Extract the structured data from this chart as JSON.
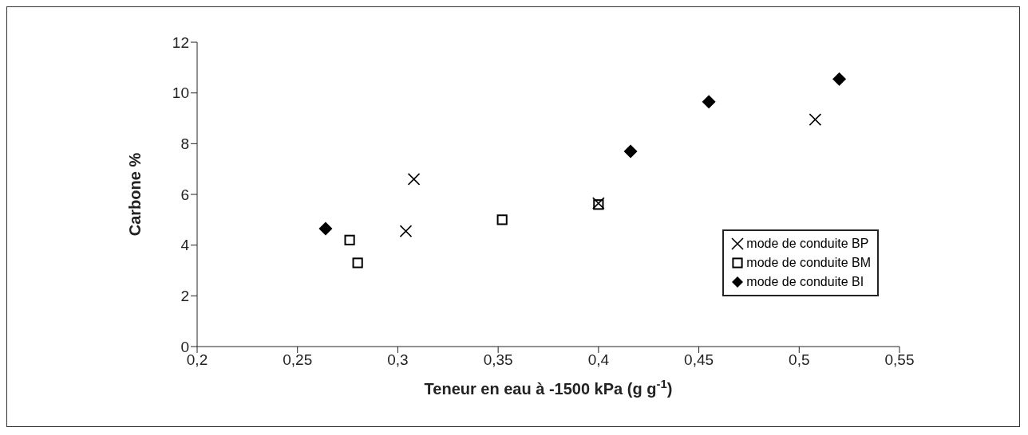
{
  "chart_data": {
    "type": "scatter",
    "xlabel": "Teneur en eau à -1500 kPa (g g$^{-1}$)",
    "ylabel": "Carbone %",
    "xlim": [
      0.2,
      0.55
    ],
    "xticks": [
      {
        "value": 0.2,
        "label": "0,2"
      },
      {
        "value": 0.25,
        "label": "0,25"
      },
      {
        "value": 0.3,
        "label": "0,3"
      },
      {
        "value": 0.35,
        "label": "0,35"
      },
      {
        "value": 0.4,
        "label": "0,4"
      },
      {
        "value": 0.45,
        "label": "0,45"
      },
      {
        "value": 0.5,
        "label": "0,5"
      },
      {
        "value": 0.55,
        "label": "0,55"
      }
    ],
    "ylim": [
      0,
      12
    ],
    "yticks": [
      0,
      2,
      4,
      6,
      8,
      10,
      12
    ],
    "grid": false,
    "legend": "bottom right",
    "series": [
      {
        "name": "mode de conduite BP",
        "color": "#000000",
        "marker": "cross",
        "x": [
          0.304,
          0.308,
          0.4,
          0.508
        ],
        "values": [
          4.55,
          6.6,
          5.65,
          8.95
        ]
      },
      {
        "name": "mode de conduite BM",
        "color": "#000000",
        "marker": "square",
        "x": [
          0.276,
          0.28,
          0.352,
          0.4
        ],
        "values": [
          4.2,
          3.3,
          5.0,
          5.6
        ]
      },
      {
        "name": "mode de conduite BI",
        "color": "#000000",
        "marker": "diamond",
        "x": [
          0.264,
          0.416,
          0.455,
          0.52
        ],
        "values": [
          4.65,
          7.7,
          9.65,
          10.55
        ]
      }
    ]
  }
}
